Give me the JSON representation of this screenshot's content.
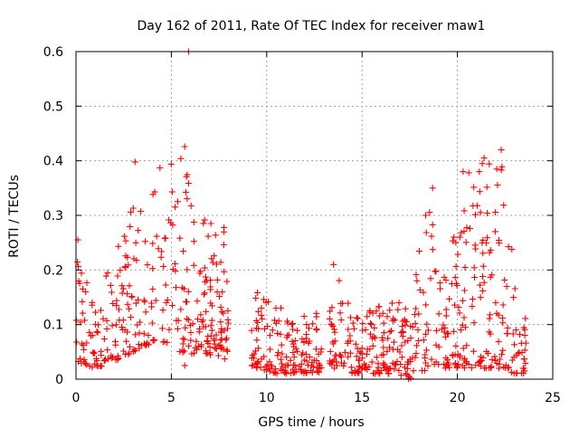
{
  "chart_data": {
    "type": "scatter",
    "title": "Day 162 of 2011, Rate Of TEC Index for receiver maw1",
    "xlabel": "GPS time / hours",
    "ylabel": "ROTI / TECUs",
    "xlim": [
      0,
      25
    ],
    "ylim": [
      0,
      0.6
    ],
    "xticks": [
      0,
      5,
      10,
      15,
      20,
      25
    ],
    "xtick_labels": [
      "0",
      "5",
      "10",
      "15",
      "20",
      "25"
    ],
    "yticks": [
      0,
      0.1,
      0.2,
      0.3,
      0.4,
      0.5,
      0.6
    ],
    "ytick_labels": [
      "0",
      "0.1",
      "0.2",
      "0.3",
      "0.4",
      "0.5",
      "0.6"
    ],
    "grid": true,
    "marker": "plus",
    "color": "#ff0000",
    "point_count_estimate": 900,
    "data_gaps_hours": [
      [
        8.0,
        9.2
      ],
      [
        12.9,
        13.3
      ],
      [
        23.6,
        25
      ]
    ],
    "envelope": {
      "description": "approximate per-hour spread of ROTI values (TECUs)",
      "points": [
        {
          "x": 0.0,
          "low": 0.03,
          "high": 0.25
        },
        {
          "x": 1.0,
          "low": 0.02,
          "high": 0.15
        },
        {
          "x": 2.0,
          "low": 0.03,
          "high": 0.22
        },
        {
          "x": 3.0,
          "low": 0.05,
          "high": 0.33
        },
        {
          "x": 3.5,
          "low": 0.06,
          "high": 0.4
        },
        {
          "x": 4.5,
          "low": 0.07,
          "high": 0.38
        },
        {
          "x": 5.5,
          "low": 0.04,
          "high": 0.42
        },
        {
          "x": 6.5,
          "low": 0.05,
          "high": 0.3
        },
        {
          "x": 7.5,
          "low": 0.04,
          "high": 0.3
        },
        {
          "x": 9.5,
          "low": 0.02,
          "high": 0.17
        },
        {
          "x": 10.5,
          "low": 0.01,
          "high": 0.15
        },
        {
          "x": 11.5,
          "low": 0.01,
          "high": 0.12
        },
        {
          "x": 12.5,
          "low": 0.01,
          "high": 0.11
        },
        {
          "x": 13.5,
          "low": 0.02,
          "high": 0.21
        },
        {
          "x": 14.5,
          "low": 0.01,
          "high": 0.12
        },
        {
          "x": 15.5,
          "low": 0.01,
          "high": 0.14
        },
        {
          "x": 16.5,
          "low": 0.01,
          "high": 0.15
        },
        {
          "x": 17.5,
          "low": 0.0,
          "high": 0.14
        },
        {
          "x": 18.5,
          "low": 0.02,
          "high": 0.35
        },
        {
          "x": 19.5,
          "low": 0.02,
          "high": 0.22
        },
        {
          "x": 20.5,
          "low": 0.02,
          "high": 0.38
        },
        {
          "x": 21.5,
          "low": 0.02,
          "high": 0.4
        },
        {
          "x": 22.3,
          "low": 0.02,
          "high": 0.42
        },
        {
          "x": 23.0,
          "low": 0.01,
          "high": 0.2
        },
        {
          "x": 23.5,
          "low": 0.01,
          "high": 0.12
        }
      ]
    },
    "notable_points": [
      {
        "x": 0.1,
        "y": 0.255
      },
      {
        "x": 3.1,
        "y": 0.398
      },
      {
        "x": 4.4,
        "y": 0.387
      },
      {
        "x": 5.7,
        "y": 0.426
      },
      {
        "x": 5.9,
        "y": 0.6
      },
      {
        "x": 5.7,
        "y": 0.025
      },
      {
        "x": 13.5,
        "y": 0.21
      },
      {
        "x": 18.7,
        "y": 0.35
      },
      {
        "x": 20.3,
        "y": 0.38
      },
      {
        "x": 21.4,
        "y": 0.405
      },
      {
        "x": 22.3,
        "y": 0.42
      },
      {
        "x": 22.3,
        "y": 0.383
      }
    ]
  }
}
